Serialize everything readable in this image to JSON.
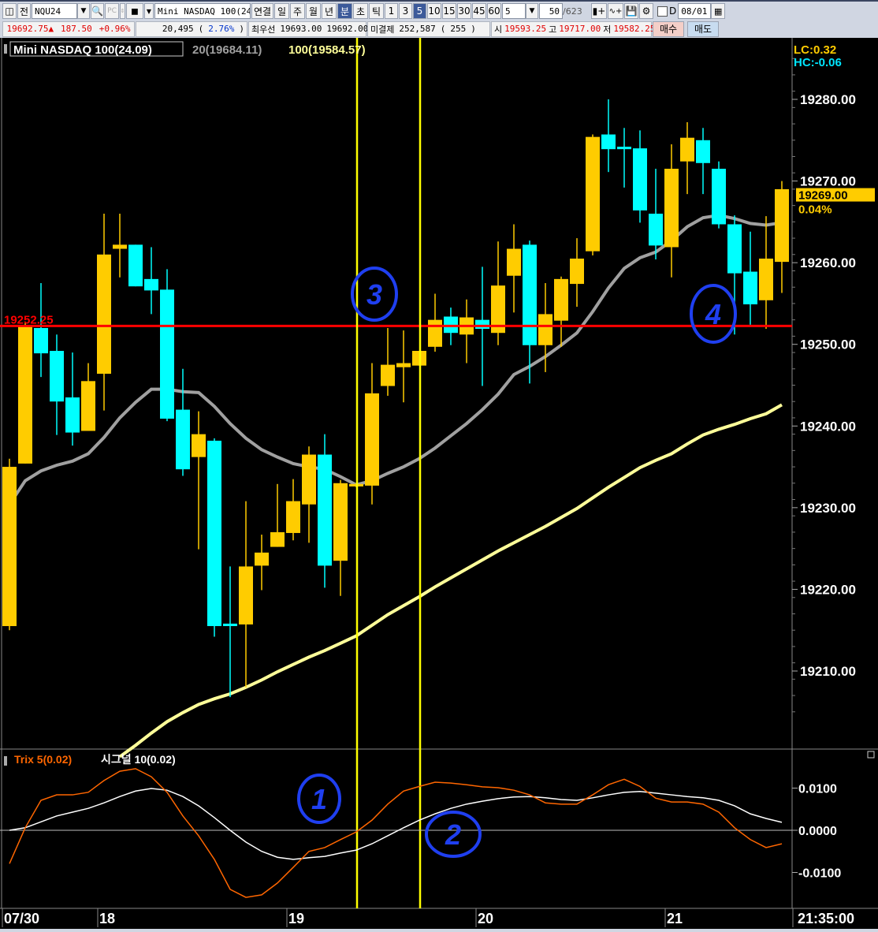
{
  "toolbar": {
    "layout_icon": "panel-layout-icon",
    "jeon_label": "전",
    "symbol": "NQU24",
    "symbol_name": "Mini NASDAQ 100(24.0",
    "period_buttons": [
      "연결",
      "일",
      "주",
      "월",
      "년",
      "분",
      "초",
      "틱"
    ],
    "active_period": "분",
    "interval_buttons": [
      "1",
      "3",
      "5",
      "10",
      "15",
      "30",
      "45",
      "60"
    ],
    "active_interval": "5",
    "interval_select": "5",
    "count_value": "50",
    "count_total": "/623",
    "d_label": "D",
    "date_value": "08/01",
    "icons": [
      "candle-add-icon",
      "indicator-add-icon",
      "save-icon",
      "gear-icon"
    ]
  },
  "quote": {
    "price": "19692.75",
    "arrow": "▲",
    "change": "187.50",
    "change_pct": "+0.96%",
    "volume": "20,495",
    "volume_open": "(",
    "volume_pct": "2.76%",
    "volume_close": ")",
    "best_label": "최우선",
    "best_ask": "19693.00",
    "best_bid": "19692.00",
    "oi_label": "미결제",
    "open_interest": "252,587",
    "oi_open": "(",
    "oi_change": "255",
    "oi_close": ")",
    "open_label": "시",
    "open": "19593.25",
    "high_label": "고",
    "high": "19717.00",
    "low_label": "저",
    "low": "19582.25",
    "buy_label": "매수",
    "sell_label": "매도",
    "buy_color": "#f4cfc8",
    "sell_color": "#c8dcf0"
  },
  "chart_data": [
    {
      "type": "candlestick",
      "title": "Mini NASDAQ 100(24.09)",
      "legend": [
        {
          "label": "20(19684.11)",
          "color": "#a0a0a0"
        },
        {
          "label": "100(19584.57)",
          "color": "#ffff99"
        }
      ],
      "lc_label": "LC:0.32",
      "hc_label": "HC:-0.06",
      "up_color": "#ffcc00",
      "down_color": "#00ffff",
      "ylim": [
        19200,
        19285
      ],
      "y_ticks": [
        "19280.00",
        "19270.00",
        "19260.00",
        "19250.00",
        "19240.00",
        "19230.00",
        "19220.00",
        "19210.00"
      ],
      "y_tick_values": [
        19280,
        19270,
        19260,
        19250,
        19240,
        19230,
        19220,
        19210
      ],
      "current_price": "19269.00",
      "current_change": "0.04%",
      "hline": {
        "value": 19252.25,
        "label": "19252.25",
        "color": "#ff0000"
      },
      "vlines_at": [
        "19:20",
        "19:40"
      ],
      "vline_color": "#ffff00",
      "candles_fields": [
        "time",
        "open",
        "high",
        "low",
        "close"
      ],
      "candles": [
        [
          "17:30",
          19215.5,
          19236.0,
          19215.0,
          19235.0
        ],
        [
          "17:35",
          19235.4,
          19252.6,
          19235.4,
          19252.3
        ],
        [
          "17:40",
          19252.0,
          19257.5,
          19246.0,
          19248.9
        ],
        [
          "17:45",
          19249.2,
          19251.2,
          19238.9,
          19243.0
        ],
        [
          "17:50",
          19243.5,
          19249.0,
          19237.6,
          19239.2
        ],
        [
          "17:55",
          19239.4,
          19247.7,
          19239.4,
          19245.5
        ],
        [
          "18:00",
          19246.4,
          19266.0,
          19241.9,
          19261.0
        ],
        [
          "18:05",
          19261.7,
          19266.0,
          19258.2,
          19262.2
        ],
        [
          "18:10",
          19262.2,
          19262.2,
          19257.1,
          19257.1
        ],
        [
          "18:15",
          19258.0,
          19261.9,
          19253.7,
          19256.6
        ],
        [
          "18:20",
          19256.7,
          19259.2,
          19240.6,
          19240.9
        ],
        [
          "18:25",
          19242.0,
          19247.0,
          19233.9,
          19234.7
        ],
        [
          "18:30",
          19236.2,
          19241.8,
          19224.9,
          19239.0
        ],
        [
          "18:35",
          19238.2,
          19238.5,
          19214.2,
          19215.5
        ],
        [
          "18:40",
          19215.8,
          19222.8,
          19206.8,
          19215.5
        ],
        [
          "18:45",
          19215.7,
          19230.8,
          19208.0,
          19222.8
        ],
        [
          "18:50",
          19222.9,
          19226.7,
          19219.9,
          19224.5
        ],
        [
          "18:55",
          19225.2,
          19232.9,
          19225.2,
          19227.0
        ],
        [
          "19:00",
          19226.9,
          19233.5,
          19226.0,
          19230.8
        ],
        [
          "19:05",
          19230.4,
          19237.5,
          19225.7,
          19236.5
        ],
        [
          "19:10",
          19236.5,
          19239.0,
          19220.2,
          19222.9
        ],
        [
          "19:15",
          19223.5,
          19233.4,
          19219.2,
          19233.0
        ],
        [
          "19:20",
          19232.6,
          19233.0,
          19232.5,
          19232.9
        ],
        [
          "19:25",
          19232.7,
          19247.7,
          19230.4,
          19244.0
        ],
        [
          "19:30",
          19244.9,
          19252.0,
          19243.7,
          19247.5
        ],
        [
          "19:35",
          19247.2,
          19251.7,
          19242.9,
          19247.7
        ],
        [
          "19:40",
          19247.4,
          19249.2,
          19247.4,
          19249.2
        ],
        [
          "19:45",
          19249.7,
          19256.2,
          19249.1,
          19253.0
        ],
        [
          "19:50",
          19253.4,
          19254.5,
          19249.9,
          19251.4
        ],
        [
          "19:55",
          19251.2,
          19255.5,
          19247.7,
          19253.3
        ],
        [
          "20:00",
          19253.0,
          19259.5,
          19244.9,
          19251.9
        ],
        [
          "20:05",
          19251.4,
          19262.6,
          19249.9,
          19257.2
        ],
        [
          "20:10",
          19258.4,
          19264.7,
          19253.9,
          19261.7
        ],
        [
          "20:15",
          19262.2,
          19262.7,
          19245.2,
          19249.9
        ],
        [
          "20:20",
          19249.9,
          19257.5,
          19246.6,
          19253.7
        ],
        [
          "20:25",
          19252.9,
          19258.3,
          19249.7,
          19258.0
        ],
        [
          "20:30",
          19257.4,
          19263.0,
          19254.6,
          19260.5
        ],
        [
          "20:35",
          19261.4,
          19275.7,
          19260.9,
          19275.4
        ],
        [
          "20:40",
          19275.7,
          19280.0,
          19271.1,
          19273.9
        ],
        [
          "20:45",
          19274.2,
          19276.5,
          19269.2,
          19273.9
        ],
        [
          "20:50",
          19274.0,
          19276.2,
          19264.9,
          19266.4
        ],
        [
          "20:55",
          19266.0,
          19271.5,
          19260.4,
          19262.1
        ],
        [
          "21:00",
          19261.9,
          19274.5,
          19258.2,
          19271.5
        ],
        [
          "21:05",
          19272.4,
          19277.2,
          19268.4,
          19275.3
        ],
        [
          "21:10",
          19275.0,
          19276.5,
          19268.4,
          19272.2
        ],
        [
          "21:15",
          19271.5,
          19272.4,
          19264.2,
          19264.7
        ],
        [
          "21:20",
          19264.7,
          19265.8,
          19251.2,
          19258.7
        ],
        [
          "21:25",
          19258.9,
          19263.8,
          19252.4,
          19254.9
        ],
        [
          "21:30",
          19255.4,
          19265.7,
          19251.9,
          19260.5
        ],
        [
          "21:35",
          19260.1,
          19270.0,
          19256.3,
          19269.0
        ]
      ],
      "ma20": [
        19230.4,
        19233.3,
        19234.5,
        19235.2,
        19235.7,
        19236.6,
        19238.6,
        19241.0,
        19242.9,
        19244.5,
        19244.5,
        19244.2,
        19244.1,
        19242.4,
        19240.3,
        19238.5,
        19237.1,
        19236.2,
        19235.4,
        19235.0,
        19234.7,
        19233.8,
        19232.8,
        19233.3,
        19234.2,
        19235.0,
        19236.0,
        19237.3,
        19238.8,
        19240.3,
        19242.0,
        19243.9,
        19246.3,
        19247.3,
        19248.5,
        19249.9,
        19251.4,
        19254.0,
        19256.9,
        19259.3,
        19260.6,
        19261.3,
        19262.7,
        19264.4,
        19265.5,
        19265.8,
        19265.4,
        19264.8,
        19264.6,
        19264.9
      ],
      "ma100": [
        null,
        null,
        null,
        null,
        null,
        null,
        null,
        19199.5,
        19200.9,
        19202.4,
        19203.8,
        19204.9,
        19205.9,
        19206.6,
        19207.2,
        19208.0,
        19208.9,
        19209.9,
        19210.8,
        19211.7,
        19212.5,
        19213.4,
        19214.3,
        19215.6,
        19216.9,
        19218.0,
        19219.1,
        19220.3,
        19221.4,
        19222.5,
        19223.6,
        19224.7,
        19225.7,
        19226.7,
        19227.7,
        19228.8,
        19229.9,
        19231.2,
        19232.5,
        19233.7,
        19234.9,
        19235.8,
        19236.6,
        19237.8,
        19238.9,
        19239.6,
        19240.2,
        19240.9,
        19241.5,
        19242.6
      ],
      "ma20_color": "#a0a0a0",
      "ma100_color": "#ffff99",
      "x_ticks": [
        {
          "label": "07/30",
          "time": "17:30"
        },
        {
          "label": "18",
          "time": "18:00"
        },
        {
          "label": "19",
          "time": "19:00"
        },
        {
          "label": "20",
          "time": "20:00"
        },
        {
          "label": "21",
          "time": "21:00"
        }
      ],
      "x_last_label": "21:35:00",
      "annotations": [
        "3",
        "4"
      ]
    },
    {
      "type": "line",
      "title": "",
      "legend": [
        {
          "label": "Trix 5(0.02)",
          "color": "#ff6600"
        },
        {
          "label": "시그널 10(0.02)",
          "color": "#ffffff"
        }
      ],
      "ylim": [
        -0.019,
        0.018
      ],
      "y_ticks": [
        "0.0100",
        "0.0000",
        "-0.0100"
      ],
      "y_tick_values": [
        0.01,
        0,
        -0.01
      ],
      "zero_line": true,
      "series": [
        {
          "name": "Trix 5",
          "color": "#ff6600",
          "values": [
            -0.0079,
            0.0006,
            0.0071,
            0.0084,
            0.0084,
            0.009,
            0.0118,
            0.014,
            0.0146,
            0.0127,
            0.009,
            0.0034,
            -0.0013,
            -0.0069,
            -0.014,
            -0.0159,
            -0.0153,
            -0.0125,
            -0.0088,
            -0.005,
            -0.0041,
            -0.0022,
            -0.0004,
            0.0024,
            0.0062,
            0.0093,
            0.0104,
            0.0114,
            0.0112,
            0.0108,
            0.0103,
            0.0101,
            0.0095,
            0.0084,
            0.0065,
            0.0062,
            0.0062,
            0.0084,
            0.0108,
            0.0121,
            0.0104,
            0.0076,
            0.0067,
            0.0067,
            0.0062,
            0.0043,
            0.0006,
            -0.0022,
            -0.0041,
            -0.0032
          ]
        },
        {
          "name": "시그널 10",
          "color": "#ffffff",
          "values": [
            0.0,
            0.0006,
            0.002,
            0.0034,
            0.0043,
            0.0052,
            0.0065,
            0.008,
            0.0093,
            0.0099,
            0.0095,
            0.008,
            0.0058,
            0.003,
            0.0,
            -0.0028,
            -0.005,
            -0.0064,
            -0.0069,
            -0.0065,
            -0.0062,
            -0.0054,
            -0.0047,
            -0.0032,
            -0.0013,
            0.0006,
            0.0024,
            0.0039,
            0.0052,
            0.0062,
            0.0069,
            0.0075,
            0.0079,
            0.008,
            0.0077,
            0.0073,
            0.0071,
            0.0077,
            0.0084,
            0.009,
            0.0092,
            0.0088,
            0.0084,
            0.008,
            0.0077,
            0.0071,
            0.0058,
            0.0039,
            0.0028,
            0.0019
          ]
        }
      ],
      "annotations": [
        "1",
        "2"
      ],
      "annotation_color": "#1f3ff0"
    }
  ]
}
